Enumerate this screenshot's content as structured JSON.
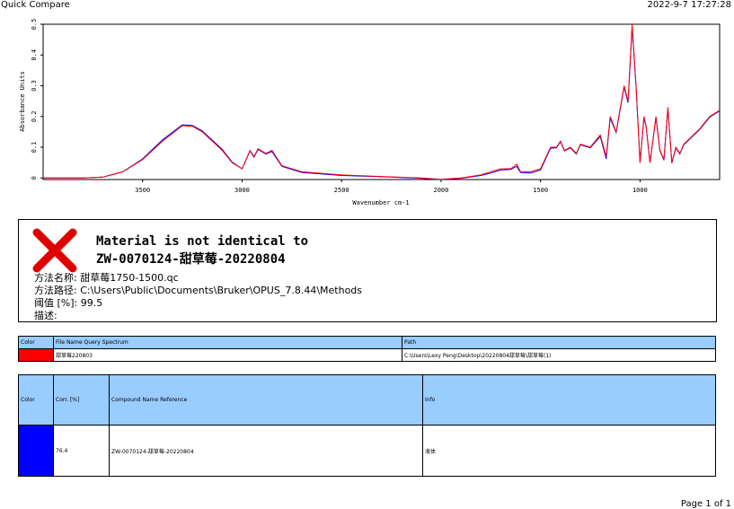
{
  "header": {
    "title": "Quick Compare",
    "timestamp": "2022-9-7  17:27:28"
  },
  "chart_data": {
    "type": "line",
    "x_label": "Wavenumber cm-1",
    "y_label": "Absorbance Units",
    "x": [
      4000,
      3800,
      3700,
      3600,
      3500,
      3400,
      3300,
      3250,
      3200,
      3100,
      3050,
      3000,
      2960,
      2940,
      2920,
      2880,
      2850,
      2800,
      2700,
      2500,
      2300,
      2100,
      2000,
      1900,
      1800,
      1750,
      1700,
      1650,
      1620,
      1600,
      1550,
      1500,
      1450,
      1420,
      1400,
      1380,
      1350,
      1320,
      1300,
      1250,
      1200,
      1170,
      1150,
      1120,
      1080,
      1060,
      1040,
      1020,
      1000,
      980,
      970,
      950,
      920,
      900,
      880,
      860,
      840,
      820,
      800,
      780,
      700,
      650,
      600
    ],
    "series": [
      {
        "name": "Reference",
        "color": "#0000ff",
        "values": [
          0.0,
          0.0,
          0.003,
          0.02,
          0.062,
          0.124,
          0.173,
          0.171,
          0.153,
          0.093,
          0.052,
          0.03,
          0.088,
          0.068,
          0.093,
          0.078,
          0.086,
          0.038,
          0.018,
          0.008,
          0.004,
          -0.001,
          -0.005,
          -0.001,
          0.008,
          0.016,
          0.026,
          0.028,
          0.038,
          0.018,
          0.016,
          0.026,
          0.097,
          0.098,
          0.118,
          0.088,
          0.098,
          0.078,
          0.108,
          0.098,
          0.135,
          0.062,
          0.195,
          0.148,
          0.295,
          0.245,
          0.49,
          0.295,
          0.05,
          0.195,
          0.168,
          0.05,
          0.196,
          0.088,
          0.058,
          0.228,
          0.048,
          0.098,
          0.078,
          0.108,
          0.158,
          0.198,
          0.218
        ]
      },
      {
        "name": "Query",
        "color": "#ff0000",
        "values": [
          0.0,
          0.0,
          0.003,
          0.02,
          0.06,
          0.12,
          0.17,
          0.168,
          0.15,
          0.09,
          0.05,
          0.03,
          0.09,
          0.07,
          0.095,
          0.08,
          0.09,
          0.04,
          0.02,
          0.01,
          0.005,
          0.0,
          -0.004,
          0.0,
          0.01,
          0.02,
          0.03,
          0.03,
          0.045,
          0.02,
          0.02,
          0.03,
          0.1,
          0.1,
          0.12,
          0.09,
          0.1,
          0.08,
          0.11,
          0.1,
          0.14,
          0.07,
          0.2,
          0.15,
          0.3,
          0.25,
          0.5,
          0.3,
          0.05,
          0.2,
          0.17,
          0.05,
          0.2,
          0.09,
          0.06,
          0.23,
          0.05,
          0.1,
          0.08,
          0.11,
          0.16,
          0.2,
          0.22
        ]
      }
    ],
    "xlim": [
      4000,
      600
    ],
    "ylim": [
      -0.005,
      0.5
    ],
    "xticks": [
      3500,
      3000,
      2500,
      2000,
      1500,
      1000
    ],
    "yticks": [
      0,
      0.1,
      0.2,
      0.3,
      0.4,
      0.5
    ]
  },
  "result": {
    "status": "Material is not identical to",
    "reference": "ZW-0070124-甜草莓-20220804",
    "lines": [
      "方法名称:  甜草莓1750-1500.qc",
      "方法路径:  C:\\Users\\Public\\Documents\\Bruker\\OPUS_7.8.44\\Methods",
      "阈值 [%]:  99.5",
      "描述:"
    ]
  },
  "query_table": {
    "headers": [
      "Color",
      "File Name Query Spectrum",
      "Path"
    ],
    "rows": [
      {
        "color": "#ff0000",
        "file": "甜草莓220803",
        "path": "C:\\Users\\Lexy Peng\\Desktop\\20220804甜草莓\\甜草莓(1)"
      }
    ]
  },
  "reference_table": {
    "headers": [
      "Color",
      "Corr. [%]",
      "Compound Name Reference",
      "Info"
    ],
    "rows": [
      {
        "color": "#0000ff",
        "corr": "76.4",
        "name": "ZW-0070124-甜草莓-20220804",
        "info": "液体"
      }
    ]
  },
  "footer": {
    "page": "Page 1 of 1"
  }
}
